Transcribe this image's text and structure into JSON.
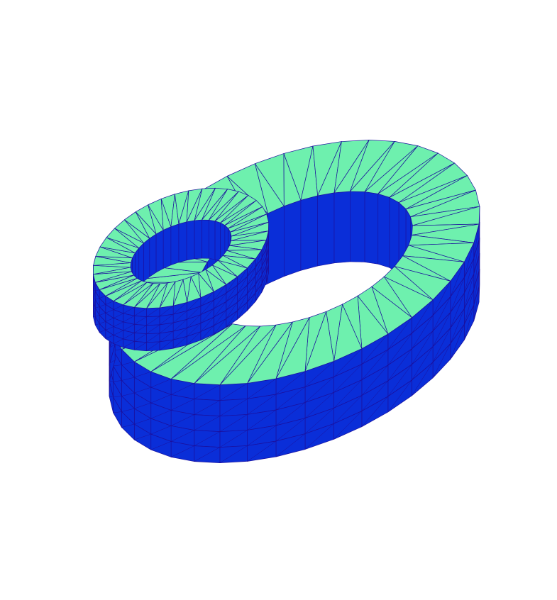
{
  "figure": {
    "background_color": "#ffffff",
    "objects": [
      {
        "name": "large-ring",
        "top_color": "#6ef0ae",
        "side_color": "#0a2ed8",
        "edge_color": "#1b0f9c"
      },
      {
        "name": "small-ring",
        "top_color": "#6ef0ae",
        "side_color": "#0a2ed8",
        "edge_color": "#1b0f9c"
      }
    ]
  }
}
